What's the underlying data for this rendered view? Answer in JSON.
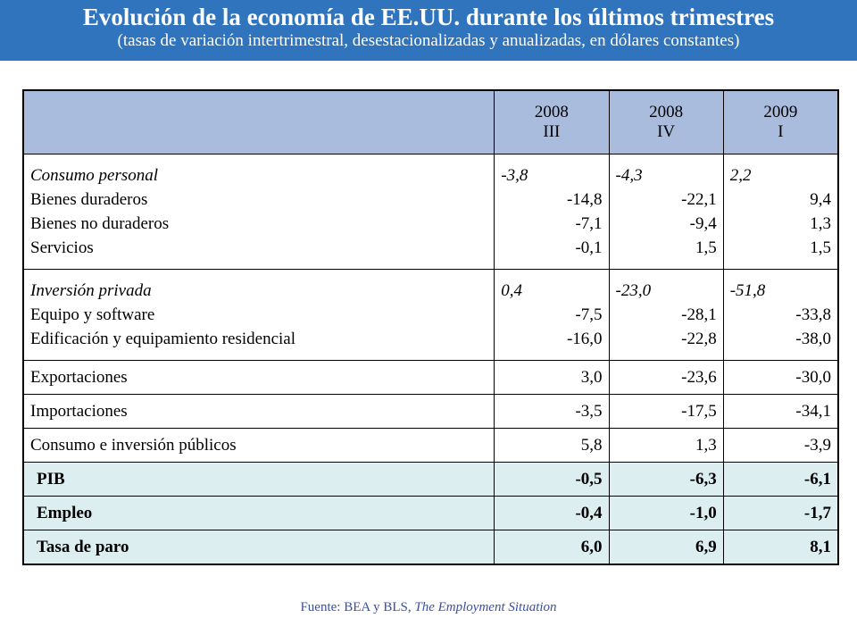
{
  "header": {
    "title": "Evolución de la economía de EE.UU. durante los últimos trimestres",
    "subtitle": "(tasas de variación intertrimestral, desestacionalizadas y anualizadas, en dólares constantes)"
  },
  "table": {
    "columns": [
      {
        "year": "2008",
        "quarter": "III"
      },
      {
        "year": "2008",
        "quarter": "IV"
      },
      {
        "year": "2009",
        "quarter": "I"
      }
    ],
    "consumo": {
      "labels": [
        "Consumo personal",
        "Bienes duraderos",
        "Bienes no duraderos",
        "Servicios"
      ],
      "values": [
        [
          "-3,8",
          "-14,8",
          "-7,1",
          "-0,1"
        ],
        [
          "-4,3",
          "-22,1",
          "-9,4",
          "1,5"
        ],
        [
          "2,2",
          "9,4",
          "1,3",
          "1,5"
        ]
      ]
    },
    "inversion": {
      "labels": [
        "Inversión privada",
        "Equipo y software",
        "Edificación y equipamiento residencial"
      ],
      "values": [
        [
          "0,4",
          "-7,5",
          "-16,0"
        ],
        [
          "-23,0",
          "-28,1",
          "-22,8"
        ],
        [
          "-51,8",
          "-33,8",
          "-38,0"
        ]
      ]
    },
    "rows": [
      {
        "label": "Exportaciones",
        "values": [
          "3,0",
          "-23,6",
          "-30,0"
        ]
      },
      {
        "label": "Importaciones",
        "values": [
          "-3,5",
          "-17,5",
          "-34,1"
        ]
      },
      {
        "label": "Consumo e inversión públicos",
        "values": [
          "5,8",
          "1,3",
          "-3,9"
        ]
      }
    ],
    "highlight_rows": [
      {
        "label": "PIB",
        "values": [
          "-0,5",
          "-6,3",
          "-6,1"
        ]
      },
      {
        "label": "Empleo",
        "values": [
          "-0,4",
          "-1,0",
          "-1,7"
        ]
      },
      {
        "label": "Tasa de paro",
        "values": [
          "6,0",
          "6,9",
          "8,1"
        ]
      }
    ]
  },
  "source": {
    "prefix": "Fuente: BEA y BLS, ",
    "publication": "The Employment Situation"
  },
  "colors": {
    "header_bg": "#2f74bd",
    "table_head_bg": "#a9bcdd",
    "highlight_bg": "#ddeef0",
    "source_text": "#3b4fa0"
  }
}
